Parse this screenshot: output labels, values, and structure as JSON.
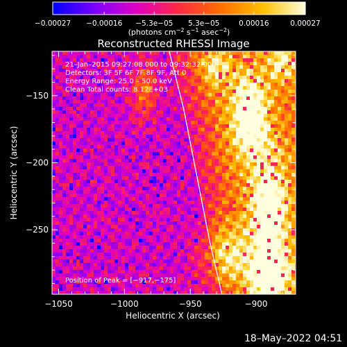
{
  "chart_data": {
    "type": "heatmap",
    "title": "Reconstructed RHESSI Image",
    "xlabel": "Heliocentric X (arcsec)",
    "ylabel": "Heliocentric Y (arcsec)",
    "xlim": [
      -1055,
      -870
    ],
    "ylim": [
      -298,
      -117
    ],
    "x_ticks": [
      -1050,
      -1000,
      -950,
      -900
    ],
    "x_tick_labels": [
      "−1050",
      "−1000",
      "−950",
      "−900"
    ],
    "y_ticks": [
      -150,
      -200,
      -250
    ],
    "y_tick_labels": [
      "−150",
      "−200",
      "−250"
    ],
    "colorbar": {
      "range": [
        -0.00027,
        0.00027
      ],
      "tick_values": [
        -0.00027,
        -0.00016,
        -5.3e-05,
        5.3e-05,
        0.00016,
        0.00027
      ],
      "tick_labels": [
        "−0.00027",
        "−0.00016",
        "−5.3e−05",
        "5.3e−05",
        "0.00016",
        "0.00027"
      ],
      "units_prefix": "(photons cm",
      "units_exp1": "−2",
      "units_mid": " s",
      "units_exp2": "−1",
      "units_mid2": " asec",
      "units_exp3": "−2",
      "units_suffix": ")",
      "colors": [
        "#0000ff",
        "#7a00ff",
        "#e000c0",
        "#ff2a40",
        "#ff7000",
        "#ffc000",
        "#ffffe0"
      ]
    },
    "annotations": {
      "line1": "21–Jan–2015 09:27:08.000 to 09:32:32.000",
      "line2": "Detectors: 3F 5F 6F 7F 8F 9F, Att 0",
      "line3": "Energy Range: 25.0 – 50.0 keV",
      "line4": "Clean     Total counts: 8.12E+03",
      "peak": "Position of Peak = [−917,−175]"
    },
    "limb_curve": [
      [
        -966,
        -117
      ],
      [
        -955,
        -160
      ],
      [
        -945,
        -210
      ],
      [
        -935,
        -260
      ],
      [
        -926,
        -298
      ]
    ],
    "emission_sources": [
      {
        "x": -905,
        "y": -165,
        "amp": 1.0,
        "sx": 10,
        "sy": 22
      },
      {
        "x": -890,
        "y": -235,
        "amp": 0.95,
        "sx": 10,
        "sy": 30
      },
      {
        "x": -890,
        "y": -285,
        "amp": 0.9,
        "sx": 12,
        "sy": 15
      },
      {
        "x": -925,
        "y": -270,
        "amp": 0.8,
        "sx": 12,
        "sy": 18
      },
      {
        "x": -985,
        "y": -145,
        "amp": 0.65,
        "sx": 6,
        "sy": 15
      },
      {
        "x": -880,
        "y": -125,
        "amp": 0.6,
        "sx": 8,
        "sy": 10
      },
      {
        "x": -930,
        "y": -130,
        "amp": 0.55,
        "sx": 8,
        "sy": 10
      }
    ],
    "peak_position": [
      -917,
      -175
    ]
  },
  "footer": {
    "timestamp": "18–May–2022 04:51"
  }
}
